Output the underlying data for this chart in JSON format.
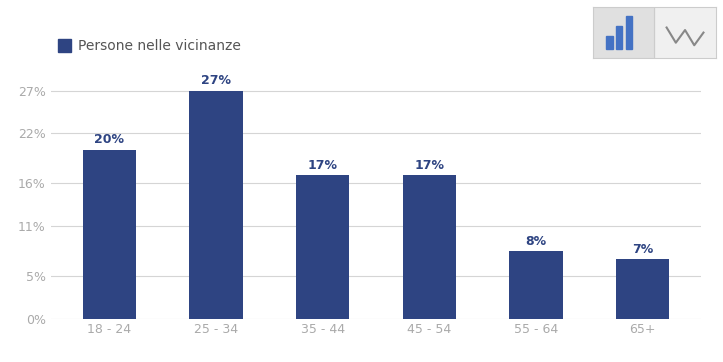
{
  "categories": [
    "18 - 24",
    "25 - 34",
    "35 - 44",
    "45 - 54",
    "55 - 64",
    "65+"
  ],
  "values": [
    20,
    27,
    17,
    17,
    8,
    7
  ],
  "bar_color": "#2e4482",
  "legend_label": "Persone nelle vicinanze",
  "legend_color": "#2e4482",
  "yticks": [
    0,
    5,
    11,
    16,
    22,
    27
  ],
  "ytick_labels": [
    "0%",
    "5%",
    "11%",
    "16%",
    "22%",
    "27%"
  ],
  "ymax": 30,
  "background_color": "#ffffff",
  "grid_color": "#d5d5d5",
  "label_color": "#2e4482",
  "axis_label_color": "#aaaaaa",
  "label_fontsize": 9,
  "tick_fontsize": 9,
  "legend_fontsize": 10,
  "bar_width": 0.5
}
